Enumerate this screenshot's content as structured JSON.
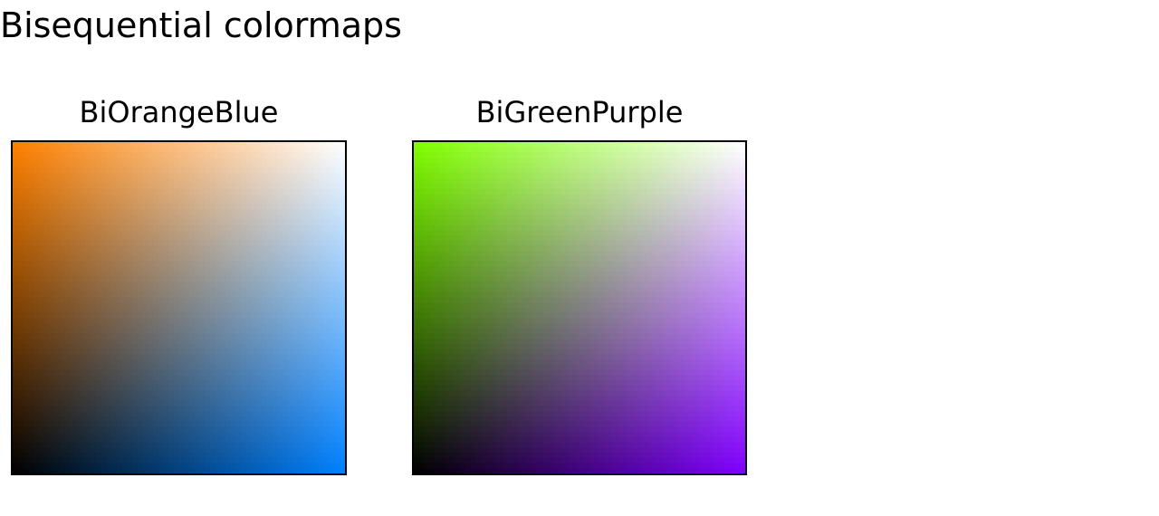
{
  "title": "Bisequential colormaps",
  "chart_data": [
    {
      "type": "heatmap",
      "title": "BiOrangeBlue",
      "corners": {
        "top_left": "#ff8000",
        "top_right": "#ffffff",
        "bottom_left": "#000000",
        "bottom_right": "#0080ff"
      },
      "grid": false,
      "axes_visible": false
    },
    {
      "type": "heatmap",
      "title": "BiGreenPurple",
      "corners": {
        "top_left": "#80ff00",
        "top_right": "#ffffff",
        "bottom_left": "#000000",
        "bottom_right": "#8000ff"
      },
      "grid": false,
      "axes_visible": false
    }
  ]
}
